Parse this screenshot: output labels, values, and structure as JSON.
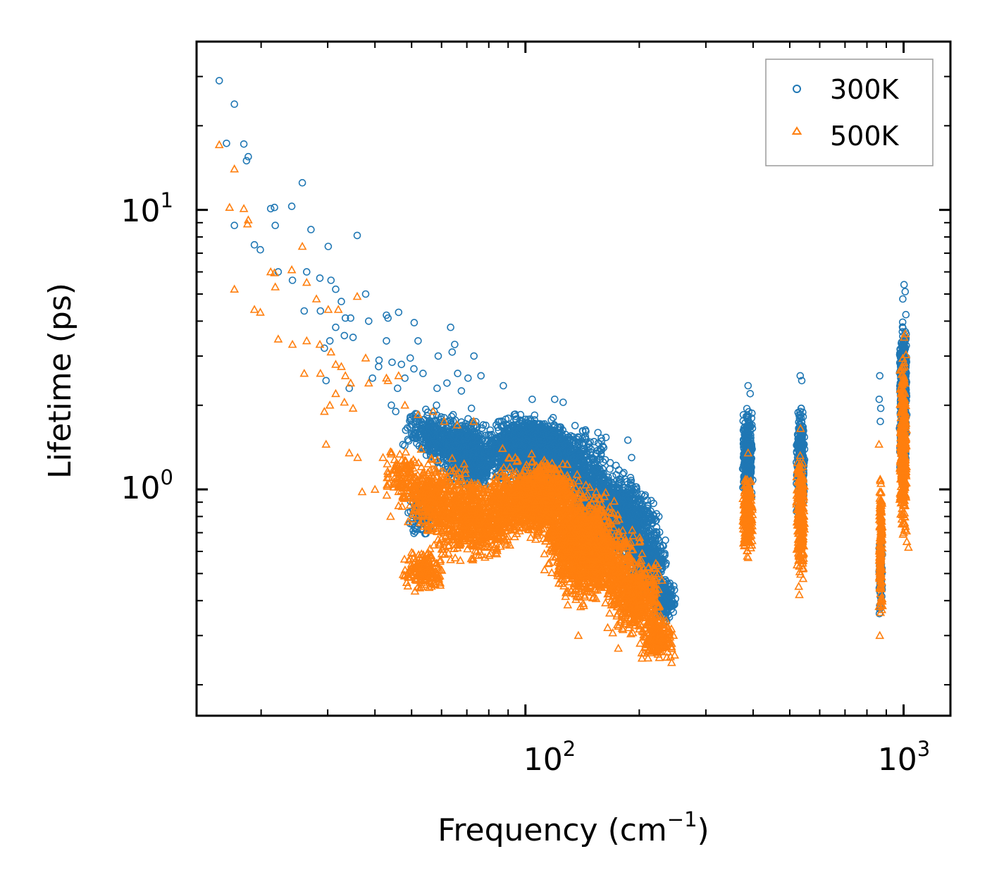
{
  "chart_data": {
    "type": "scatter",
    "title": "",
    "xlabel": "Frequency (cm",
    "xlabel_sup": "−1",
    "xlabel_close": ")",
    "ylabel": "Lifetime (ps)",
    "xscale": "log",
    "yscale": "log",
    "xlim": [
      13.5,
      1330
    ],
    "ylim": [
      0.155,
      40
    ],
    "x_ticks": [
      {
        "value": 100,
        "base": "10",
        "exp": "2"
      },
      {
        "value": 1000,
        "base": "10",
        "exp": "3"
      }
    ],
    "y_ticks": [
      {
        "value": 1,
        "base": "10",
        "exp": "0"
      },
      {
        "value": 10,
        "base": "10",
        "exp": "1"
      }
    ],
    "legend_position": "top-right",
    "series": [
      {
        "name": "300K",
        "marker": "circle",
        "color": "#1f77b4",
        "points": [
          [
            15.5,
            29.0
          ],
          [
            17.0,
            23.9
          ],
          [
            16.2,
            17.3
          ],
          [
            18.0,
            17.2
          ],
          [
            18.5,
            15.5
          ],
          [
            18.3,
            15.0
          ],
          [
            17.0,
            8.8
          ],
          [
            19.2,
            7.5
          ],
          [
            19.9,
            7.2
          ],
          [
            21.2,
            10.1
          ],
          [
            21.7,
            10.2
          ],
          [
            24.1,
            10.3
          ],
          [
            25.7,
            12.5
          ],
          [
            21.8,
            8.8
          ],
          [
            27.1,
            8.5
          ],
          [
            30.1,
            7.4
          ],
          [
            35.9,
            8.1
          ],
          [
            22.2,
            6.0
          ],
          [
            26.4,
            6.0
          ],
          [
            24.2,
            5.6
          ],
          [
            28.6,
            5.7
          ],
          [
            30.6,
            5.6
          ],
          [
            31.5,
            5.2
          ],
          [
            32.6,
            4.7
          ],
          [
            37.8,
            5.0
          ],
          [
            26.0,
            4.35
          ],
          [
            28.7,
            4.35
          ],
          [
            33.4,
            4.1
          ],
          [
            34.5,
            4.1
          ],
          [
            42.9,
            4.2
          ],
          [
            46.2,
            4.3
          ],
          [
            38.5,
            4.0
          ],
          [
            43.3,
            4.1
          ],
          [
            50.8,
            3.95
          ],
          [
            31.5,
            3.8
          ],
          [
            33.2,
            3.55
          ],
          [
            30.4,
            3.4
          ],
          [
            29.4,
            3.2
          ],
          [
            35.0,
            3.5
          ],
          [
            42.9,
            3.4
          ],
          [
            52.0,
            3.4
          ],
          [
            65.0,
            3.3
          ],
          [
            63.4,
            3.8
          ],
          [
            64.0,
            3.1
          ],
          [
            73.1,
            3.0
          ],
          [
            58.8,
            3.0
          ],
          [
            49.6,
            2.95
          ],
          [
            41.0,
            2.9
          ],
          [
            40.9,
            2.75
          ],
          [
            47.0,
            2.8
          ],
          [
            44.4,
            2.85
          ],
          [
            50.7,
            2.7
          ],
          [
            53.6,
            2.6
          ],
          [
            66.2,
            2.6
          ],
          [
            70.5,
            2.5
          ],
          [
            76.3,
            2.55
          ],
          [
            48.0,
            2.5
          ],
          [
            29.7,
            2.45
          ],
          [
            39.4,
            2.5
          ],
          [
            62.0,
            2.4
          ],
          [
            87.4,
            2.35
          ],
          [
            104.2,
            2.1
          ],
          [
            34.2,
            2.3
          ],
          [
            45.9,
            2.3
          ],
          [
            58.4,
            2.3
          ],
          [
            67.7,
            2.25
          ],
          [
            119.5,
            2.1
          ],
          [
            125.8,
            2.05
          ],
          [
            44.2,
            2.0
          ],
          [
            58.2,
            2.0
          ],
          [
            45.4,
            1.9
          ],
          [
            72.0,
            1.95
          ],
          [
            64.4,
            1.85
          ],
          [
            190.9,
            1.3
          ],
          [
            186.6,
            1.5
          ],
          [
            225.4,
            0.8
          ],
          [
            243.6,
            0.4
          ],
          [
            233.2,
            0.34
          ],
          [
            388,
            2.35
          ],
          [
            393,
            2.2
          ],
          [
            533,
            2.55
          ],
          [
            538,
            2.45
          ],
          [
            865,
            2.55
          ],
          [
            862,
            2.1
          ],
          [
            870,
            1.95
          ],
          [
            868,
            1.75
          ],
          [
            1003,
            5.4
          ],
          [
            1010,
            5.1
          ],
          [
            995,
            4.8
          ]
        ],
        "clusters": [
          {
            "x": [
              47,
              62
            ],
            "y": [
              1.3,
              2.0
            ],
            "n": 130
          },
          {
            "x": [
              52,
              82
            ],
            "y": [
              1.15,
              1.9
            ],
            "n": 420
          },
          {
            "x": [
              48,
              58
            ],
            "y": [
              0.62,
              1.05
            ],
            "n": 70
          },
          {
            "x": [
              58,
              92
            ],
            "y": [
              0.95,
              1.7
            ],
            "n": 500
          },
          {
            "x": [
              80,
              130
            ],
            "y": [
              1.1,
              1.9
            ],
            "n": 1150
          },
          {
            "x": [
              90,
              165
            ],
            "y": [
              0.9,
              1.75
            ],
            "n": 950
          },
          {
            "x": [
              130,
              205
            ],
            "y": [
              0.6,
              1.3
            ],
            "n": 720
          },
          {
            "x": [
              160,
              225
            ],
            "y": [
              0.52,
              1.05
            ],
            "n": 500
          },
          {
            "x": [
              185,
              240
            ],
            "y": [
              0.4,
              0.75
            ],
            "n": 380
          },
          {
            "x": [
              215,
              250
            ],
            "y": [
              0.32,
              0.5
            ],
            "n": 200
          },
          {
            "x": [
              375,
              400
            ],
            "y": [
              0.85,
              2.05
            ],
            "n": 330
          },
          {
            "x": [
              520,
              548
            ],
            "y": [
              0.75,
              2.2
            ],
            "n": 330
          },
          {
            "x": [
              860,
              880
            ],
            "y": [
              0.35,
              0.75
            ],
            "n": 90
          },
          {
            "x": [
              975,
              1020
            ],
            "y": [
              1.1,
              4.5
            ],
            "n": 550
          }
        ]
      },
      {
        "name": "500K",
        "marker": "triangle",
        "color": "#ff7f0e",
        "points": [
          [
            15.5,
            17.1
          ],
          [
            17.0,
            14.0
          ],
          [
            16.5,
            10.2
          ],
          [
            18.0,
            10.1
          ],
          [
            18.5,
            9.2
          ],
          [
            18.4,
            8.9
          ],
          [
            17.0,
            5.2
          ],
          [
            19.2,
            4.4
          ],
          [
            19.9,
            4.3
          ],
          [
            21.2,
            6.0
          ],
          [
            21.7,
            5.95
          ],
          [
            24.1,
            6.1
          ],
          [
            26.4,
            5.5
          ],
          [
            28.0,
            4.8
          ],
          [
            25.7,
            7.4
          ],
          [
            21.8,
            5.3
          ],
          [
            30.1,
            4.4
          ],
          [
            32.0,
            4.4
          ],
          [
            35.9,
            4.9
          ],
          [
            22.2,
            3.45
          ],
          [
            24.2,
            3.3
          ],
          [
            26.4,
            3.4
          ],
          [
            28.6,
            3.3
          ],
          [
            30.6,
            3.1
          ],
          [
            31.5,
            2.8
          ],
          [
            32.6,
            2.75
          ],
          [
            33.4,
            2.55
          ],
          [
            34.5,
            2.4
          ],
          [
            37.8,
            2.95
          ],
          [
            26.0,
            2.6
          ],
          [
            28.7,
            2.6
          ],
          [
            38.5,
            2.4
          ],
          [
            42.9,
            2.5
          ],
          [
            46.2,
            2.55
          ],
          [
            43.3,
            2.45
          ],
          [
            29.4,
            1.9
          ],
          [
            30.4,
            2.0
          ],
          [
            31.5,
            2.2
          ],
          [
            33.2,
            2.05
          ],
          [
            35.0,
            1.95
          ],
          [
            29.7,
            1.45
          ],
          [
            34.2,
            1.35
          ],
          [
            36.0,
            1.3
          ],
          [
            42.0,
            1.3
          ],
          [
            37.0,
            0.98
          ],
          [
            40.0,
            1.0
          ],
          [
            44.0,
            0.8
          ],
          [
            52.0,
            1.85
          ],
          [
            48.0,
            2.0
          ],
          [
            57.0,
            1.9
          ],
          [
            61.0,
            1.75
          ],
          [
            66.0,
            1.7
          ],
          [
            73.0,
            1.75
          ],
          [
            87.0,
            1.4
          ],
          [
            94.0,
            1.3
          ],
          [
            104.0,
            1.25
          ],
          [
            138.0,
            0.3
          ],
          [
            140.0,
            0.38
          ],
          [
            165.0,
            0.32
          ],
          [
            176.0,
            0.27
          ],
          [
            214.0,
            0.26
          ],
          [
            226.0,
            0.25
          ],
          [
            243.6,
            0.24
          ],
          [
            388,
            1.35
          ],
          [
            388,
            0.57
          ],
          [
            534,
            1.65
          ],
          [
            530,
            0.42
          ],
          [
            861,
            1.45
          ],
          [
            865,
            0.3
          ],
          [
            1003,
            3.5
          ],
          [
            1010,
            3.6
          ],
          [
            1030,
            0.62
          ],
          [
            1020,
            0.65
          ]
        ],
        "clusters": [
          {
            "x": [
              42,
              55
            ],
            "y": [
              0.82,
              1.5
            ],
            "n": 120
          },
          {
            "x": [
              47,
              70
            ],
            "y": [
              0.66,
              1.35
            ],
            "n": 350
          },
          {
            "x": [
              47,
              62
            ],
            "y": [
              0.42,
              0.62
            ],
            "n": 170
          },
          {
            "x": [
              55,
              95
            ],
            "y": [
              0.52,
              1.2
            ],
            "n": 700
          },
          {
            "x": [
              80,
              140
            ],
            "y": [
              0.62,
              1.4
            ],
            "n": 1000
          },
          {
            "x": [
              110,
              175
            ],
            "y": [
              0.42,
              1.1
            ],
            "n": 850
          },
          {
            "x": [
              120,
              205
            ],
            "y": [
              0.36,
              0.85
            ],
            "n": 650
          },
          {
            "x": [
              165,
              230
            ],
            "y": [
              0.28,
              0.62
            ],
            "n": 480
          },
          {
            "x": [
              200,
              250
            ],
            "y": [
              0.23,
              0.38
            ],
            "n": 200
          },
          {
            "x": [
              375,
              400
            ],
            "y": [
              0.55,
              1.2
            ],
            "n": 300
          },
          {
            "x": [
              520,
              548
            ],
            "y": [
              0.42,
              1.55
            ],
            "n": 310
          },
          {
            "x": [
              860,
              880
            ],
            "y": [
              0.3,
              1.3
            ],
            "n": 160
          },
          {
            "x": [
              975,
              1020
            ],
            "y": [
              0.62,
              3.3
            ],
            "n": 480
          }
        ]
      }
    ]
  }
}
